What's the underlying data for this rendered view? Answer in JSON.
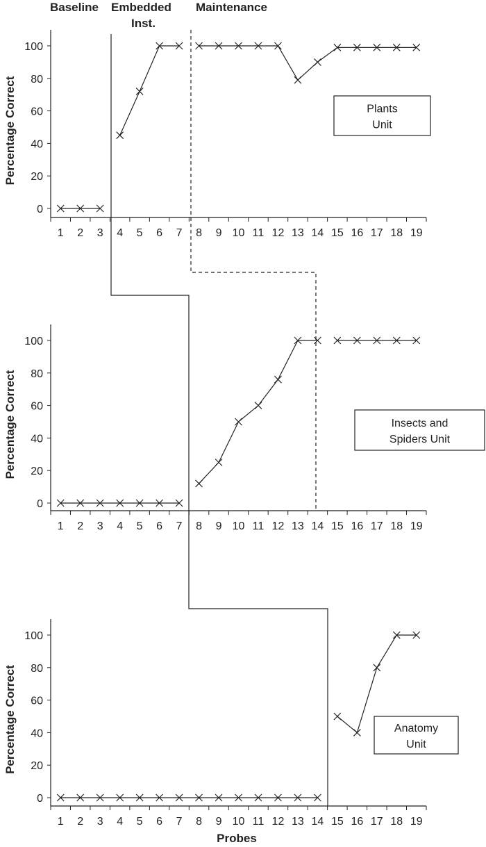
{
  "chart_data": {
    "type": "line",
    "phase_labels": [
      "Baseline",
      "Embedded",
      "Inst.",
      "Maintenance"
    ],
    "xlabel": "Probes",
    "ylabel": "Percentage Correct",
    "categories": [
      "1",
      "2",
      "3",
      "4",
      "5",
      "6",
      "7",
      "8",
      "9",
      "10",
      "11",
      "12",
      "13",
      "14",
      "15",
      "16",
      "17",
      "18",
      "19"
    ],
    "yticks": [
      "0",
      "20",
      "40",
      "60",
      "80",
      "100"
    ],
    "ylim": [
      0,
      110
    ],
    "marker": "x",
    "grid": false,
    "panels": [
      {
        "label_line1": "Plants",
        "label_line2": "Unit",
        "values": [
          0,
          0,
          0,
          45,
          72,
          100,
          100,
          100,
          100,
          100,
          100,
          100,
          79,
          90,
          99,
          99,
          99,
          99,
          99
        ],
        "segments": [
          [
            1,
            3
          ],
          [
            4,
            7
          ],
          [
            8,
            19
          ]
        ]
      },
      {
        "label_line1": "Insects and",
        "label_line2": "Spiders Unit",
        "values": [
          0,
          0,
          0,
          0,
          0,
          0,
          0,
          12,
          25,
          50,
          60,
          76,
          100,
          100,
          100,
          100,
          100,
          100,
          100
        ],
        "segments": [
          [
            1,
            7
          ],
          [
            8,
            14
          ],
          [
            15,
            19
          ]
        ]
      },
      {
        "label_line1": "Anatomy",
        "label_line2": "Unit",
        "values": [
          0,
          0,
          0,
          0,
          0,
          0,
          0,
          0,
          0,
          0,
          0,
          0,
          0,
          0,
          50,
          40,
          80,
          100,
          100
        ],
        "segments": [
          [
            1,
            14
          ],
          [
            15,
            19
          ]
        ]
      }
    ]
  }
}
